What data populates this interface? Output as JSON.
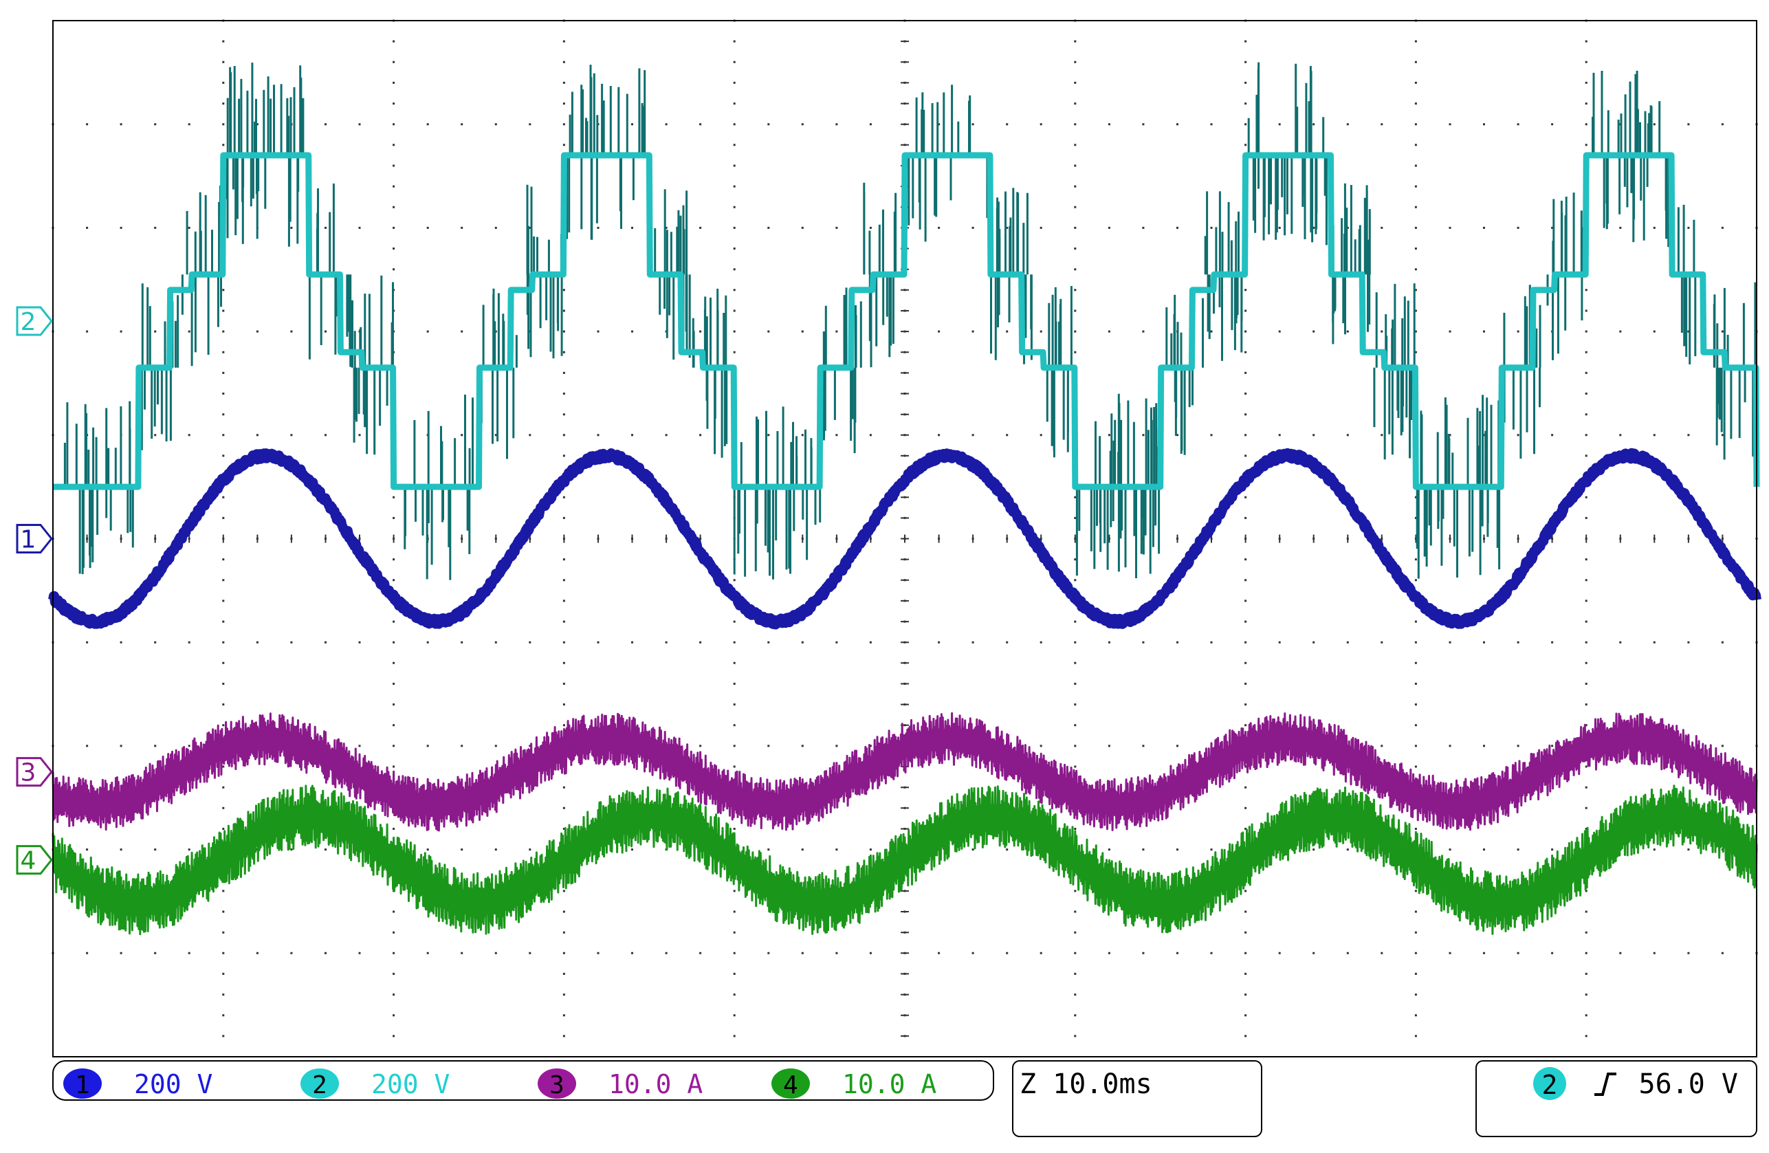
{
  "chart_data": {
    "type": "line",
    "title": "",
    "xlabel": "",
    "ylabel": "",
    "grid": true,
    "divisions": {
      "x": 10,
      "y": 10
    },
    "x_unit": "ms",
    "x_range_ms": [
      -50,
      50
    ],
    "series": [
      {
        "channel": "1",
        "scale": "200 V",
        "color": "#1a1aa6",
        "waveform": "sinusoid with small high-frequency ripple",
        "offset_div": 0.0,
        "amplitude_div": 0.8,
        "period_div": 2.0,
        "peak_time_ms": -37.5
      },
      {
        "channel": "2",
        "scale": "200 V",
        "color": "#22c0c0",
        "waveform": "stepped multilevel PWM voltage with switching spikes",
        "offset_div": 2.1,
        "levels_div": [
          1.6,
          0.45,
          -0.45,
          -1.6
        ],
        "step_level_div": 0.3,
        "period_div": 2.0,
        "peak_time_ms": -37.5
      },
      {
        "channel": "3",
        "scale": "10.0 A",
        "color": "#8b1a8b",
        "waveform": "sinusoidal current with heavy ripple",
        "offset_div": -2.25,
        "amplitude_div": 0.32,
        "ripple_div": 0.25,
        "period_div": 2.0,
        "peak_time_ms": -37.5
      },
      {
        "channel": "4",
        "scale": "10.0 A",
        "color": "#1a961a",
        "waveform": "sinusoidal current with heavy ripple",
        "offset_div": -3.1,
        "amplitude_div": 0.42,
        "ripple_div": 0.3,
        "period_div": 2.0,
        "peak_time_ms": -35.0
      }
    ],
    "markers": [
      {
        "label": "2",
        "offset_div": 2.1,
        "color": "#22c0c0"
      },
      {
        "label": "1",
        "offset_div": 0.0,
        "color": "#1a1aa6"
      },
      {
        "label": "3",
        "offset_div": -2.25,
        "color": "#8b1a8b"
      },
      {
        "label": "4",
        "offset_div": -3.1,
        "color": "#1a961a"
      }
    ]
  },
  "status_bar": {
    "channels": [
      {
        "num": "1",
        "scale": "200 V",
        "color": "#1a1ae0",
        "text_color": "#1a1ae0"
      },
      {
        "num": "2",
        "scale": "200 V",
        "color": "#22d0d0",
        "text_color": "#22d0d0"
      },
      {
        "num": "3",
        "scale": "10.0 A",
        "color": "#9b1a9b",
        "text_color": "#9b1a9b"
      },
      {
        "num": "4",
        "scale": "10.0 A",
        "color": "#1a9e1a",
        "text_color": "#1a9e1a"
      }
    ],
    "timebase": "Z 10.0ms",
    "trigger": {
      "channel": "2",
      "slope_icon": "rising-edge-icon",
      "level": "56.0 V",
      "color": "#22d0d0"
    }
  }
}
